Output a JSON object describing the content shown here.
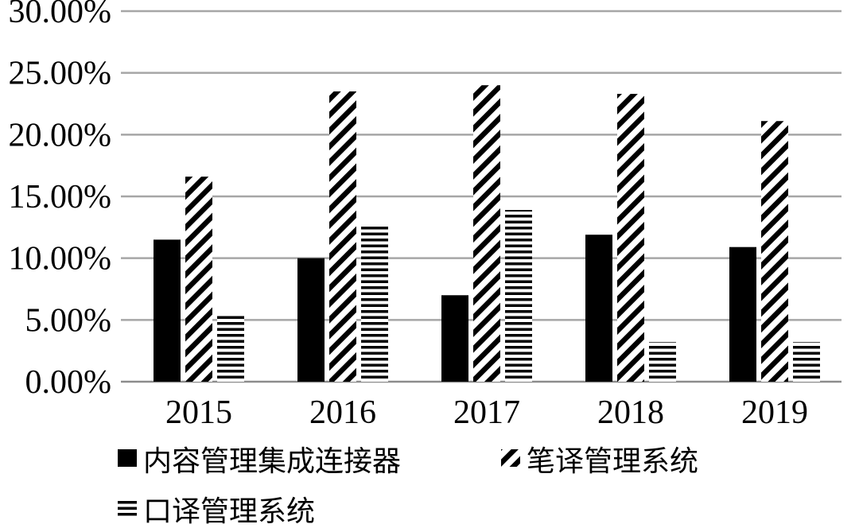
{
  "chart_data": {
    "type": "bar",
    "title": "",
    "xlabel": "",
    "ylabel": "",
    "categories": [
      "2015",
      "2016",
      "2017",
      "2018",
      "2019"
    ],
    "series": [
      {
        "name": "内容管理集成连接器",
        "values": [
          11.5,
          10.0,
          7.0,
          11.9,
          10.9
        ],
        "pattern": "solid"
      },
      {
        "name": "笔译管理系统",
        "values": [
          16.6,
          23.5,
          24.0,
          23.3,
          21.1
        ],
        "pattern": "diagonal"
      },
      {
        "name": "口译管理系统",
        "values": [
          5.5,
          12.8,
          13.9,
          3.2,
          3.2
        ],
        "pattern": "horizontal"
      }
    ],
    "ylim": [
      0,
      30
    ],
    "yticks": [
      "0.00%",
      "5.00%",
      "10.00%",
      "15.00%",
      "20.00%",
      "25.00%",
      "30.00%"
    ],
    "grid": true,
    "legend_position": "bottom",
    "colors": {
      "bar": "#000000",
      "grid": "#a6a6a6",
      "background": "#ffffff"
    }
  }
}
